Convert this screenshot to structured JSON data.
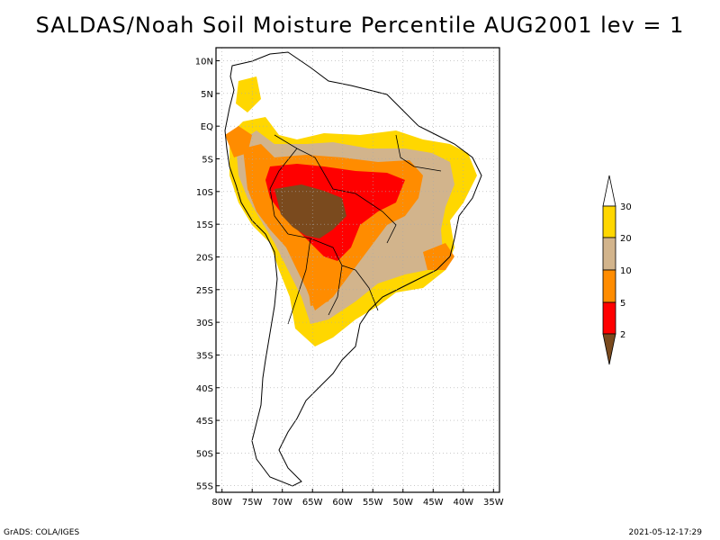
{
  "title": "SALDAS/Noah Soil Moisture Percentile AUG2001 lev = 1",
  "footer": {
    "left": "GrADS: COLA/IGES",
    "right": "2021-05-12-17:29"
  },
  "map": {
    "lat_labels": [
      "10N",
      "5N",
      "EQ",
      "5S",
      "10S",
      "15S",
      "20S",
      "25S",
      "30S",
      "35S",
      "40S",
      "45S",
      "50S",
      "55S"
    ],
    "lon_labels": [
      "80W",
      "75W",
      "70W",
      "65W",
      "60W",
      "55W",
      "50W",
      "45W",
      "40W",
      "35W"
    ],
    "lat_range": [
      -56,
      12
    ],
    "lon_range": [
      -81,
      -34
    ]
  },
  "legend": {
    "labels": [
      "2",
      "5",
      "10",
      "20",
      "30"
    ],
    "colors": {
      "below_2": "#7a4a1e",
      "2_5": "#ff0000",
      "5_10": "#ff8c00",
      "10_20": "#d2b48c",
      "20_30": "#ffd700",
      "above_30": "#ffffff"
    }
  }
}
